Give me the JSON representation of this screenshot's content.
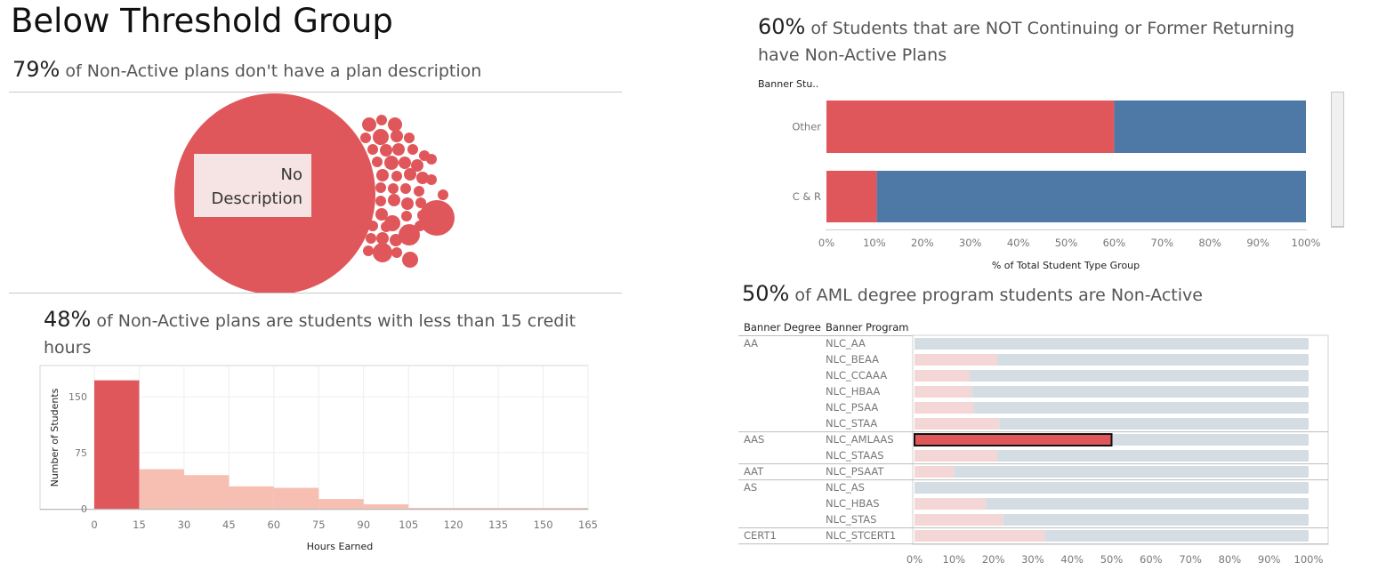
{
  "page": {
    "title": "Below Threshold Group"
  },
  "bubble_section": {
    "headline_pct": "79%",
    "headline_text": "of Non-Active plans don't have a plan description",
    "big_label": "No Description",
    "colors": {
      "bubble": "#e0575b",
      "label_bg": "#f6e4e4"
    }
  },
  "histogram_section": {
    "headline_pct": "48%",
    "headline_text": "of Non-Active plans are students with less than 15 credit hours"
  },
  "bar_section": {
    "headline_pct": "60%",
    "headline_text": "of Students that are NOT Continuing or Former Returning have Non-Active Plans",
    "row_header": "Banner Stu.."
  },
  "aml_section": {
    "headline_pct": "50%",
    "headline_text": "of AML degree program students are Non-Active",
    "col_header_degree": "Banner Degree",
    "col_header_program": "Banner Program"
  },
  "chart_data": [
    {
      "type": "scatter",
      "kind": "packed-bubble",
      "labels": [
        "No Description"
      ],
      "values": [
        79
      ],
      "note_other_bubbles": 46,
      "color": "#e0575b"
    },
    {
      "type": "bar",
      "kind": "histogram",
      "categories": [
        "0-15",
        "15-30",
        "30-45",
        "45-60",
        "60-75",
        "75-90",
        "90-105",
        "105-120",
        "120-135",
        "135-150",
        "150-165"
      ],
      "bin_edges": [
        0,
        15,
        30,
        45,
        60,
        75,
        90,
        105,
        120,
        135,
        150,
        165
      ],
      "values": [
        172,
        53,
        45,
        30,
        28,
        13,
        6,
        1,
        1,
        1,
        1
      ],
      "highlighted_bin": 0,
      "xlabel": "Hours Earned",
      "ylabel": "Number of Students",
      "xticks": [
        "0",
        "15",
        "30",
        "45",
        "60",
        "75",
        "90",
        "105",
        "120",
        "135",
        "150",
        "165"
      ],
      "yticks": [
        0,
        75,
        150
      ],
      "ylim": [
        0,
        175
      ],
      "colors": {
        "highlight": "#e0575b",
        "other": "#f7bfb2"
      }
    },
    {
      "type": "bar",
      "orientation": "horizontal",
      "stacked": true,
      "categories": [
        "Other",
        "C & R"
      ],
      "series": [
        {
          "values": [
            60,
            10.5
          ],
          "color": "#e0575b"
        },
        {
          "values": [
            40,
            89.5
          ],
          "color": "#4e78a5"
        }
      ],
      "xlabel": "% of Total Student Type Group",
      "xticks": [
        "0%",
        "10%",
        "20%",
        "30%",
        "40%",
        "50%",
        "60%",
        "70%",
        "80%",
        "90%",
        "100%"
      ],
      "xlim": [
        0,
        100
      ]
    },
    {
      "type": "bar",
      "orientation": "horizontal",
      "stacked": true,
      "degrees": [
        {
          "name": "AA",
          "programs": [
            "NLC_AA",
            "NLC_BEAA",
            "NLC_CCAAA",
            "NLC_HBAA",
            "NLC_PSAA",
            "NLC_STAA"
          ]
        },
        {
          "name": "AAS",
          "programs": [
            "NLC_AMLAAS",
            "NLC_STAAS"
          ]
        },
        {
          "name": "AAT",
          "programs": [
            "NLC_PSAAT"
          ]
        },
        {
          "name": "AS",
          "programs": [
            "NLC_AS",
            "NLC_HBAS",
            "NLC_STAS"
          ]
        },
        {
          "name": "CERT1",
          "programs": [
            "NLC_STCERT1"
          ]
        }
      ],
      "categories": [
        "NLC_AA",
        "NLC_BEAA",
        "NLC_CCAAA",
        "NLC_HBAA",
        "NLC_PSAA",
        "NLC_STAA",
        "NLC_AMLAAS",
        "NLC_STAAS",
        "NLC_PSAAT",
        "NLC_AS",
        "NLC_HBAS",
        "NLC_STAS",
        "NLC_STCERT1"
      ],
      "values": [
        0,
        21,
        14,
        14.5,
        15,
        21.5,
        50,
        21,
        10,
        0,
        18,
        22.5,
        33
      ],
      "highlighted": "NLC_AMLAAS",
      "xticks": [
        "0%",
        "10%",
        "20%",
        "30%",
        "40%",
        "50%",
        "60%",
        "70%",
        "80%",
        "90%",
        "100%"
      ],
      "xlim": [
        0,
        100
      ],
      "colors": {
        "non_active": "#f4d6d6",
        "highlight": "#e0575b",
        "rest": "#d4dde4"
      }
    }
  ]
}
